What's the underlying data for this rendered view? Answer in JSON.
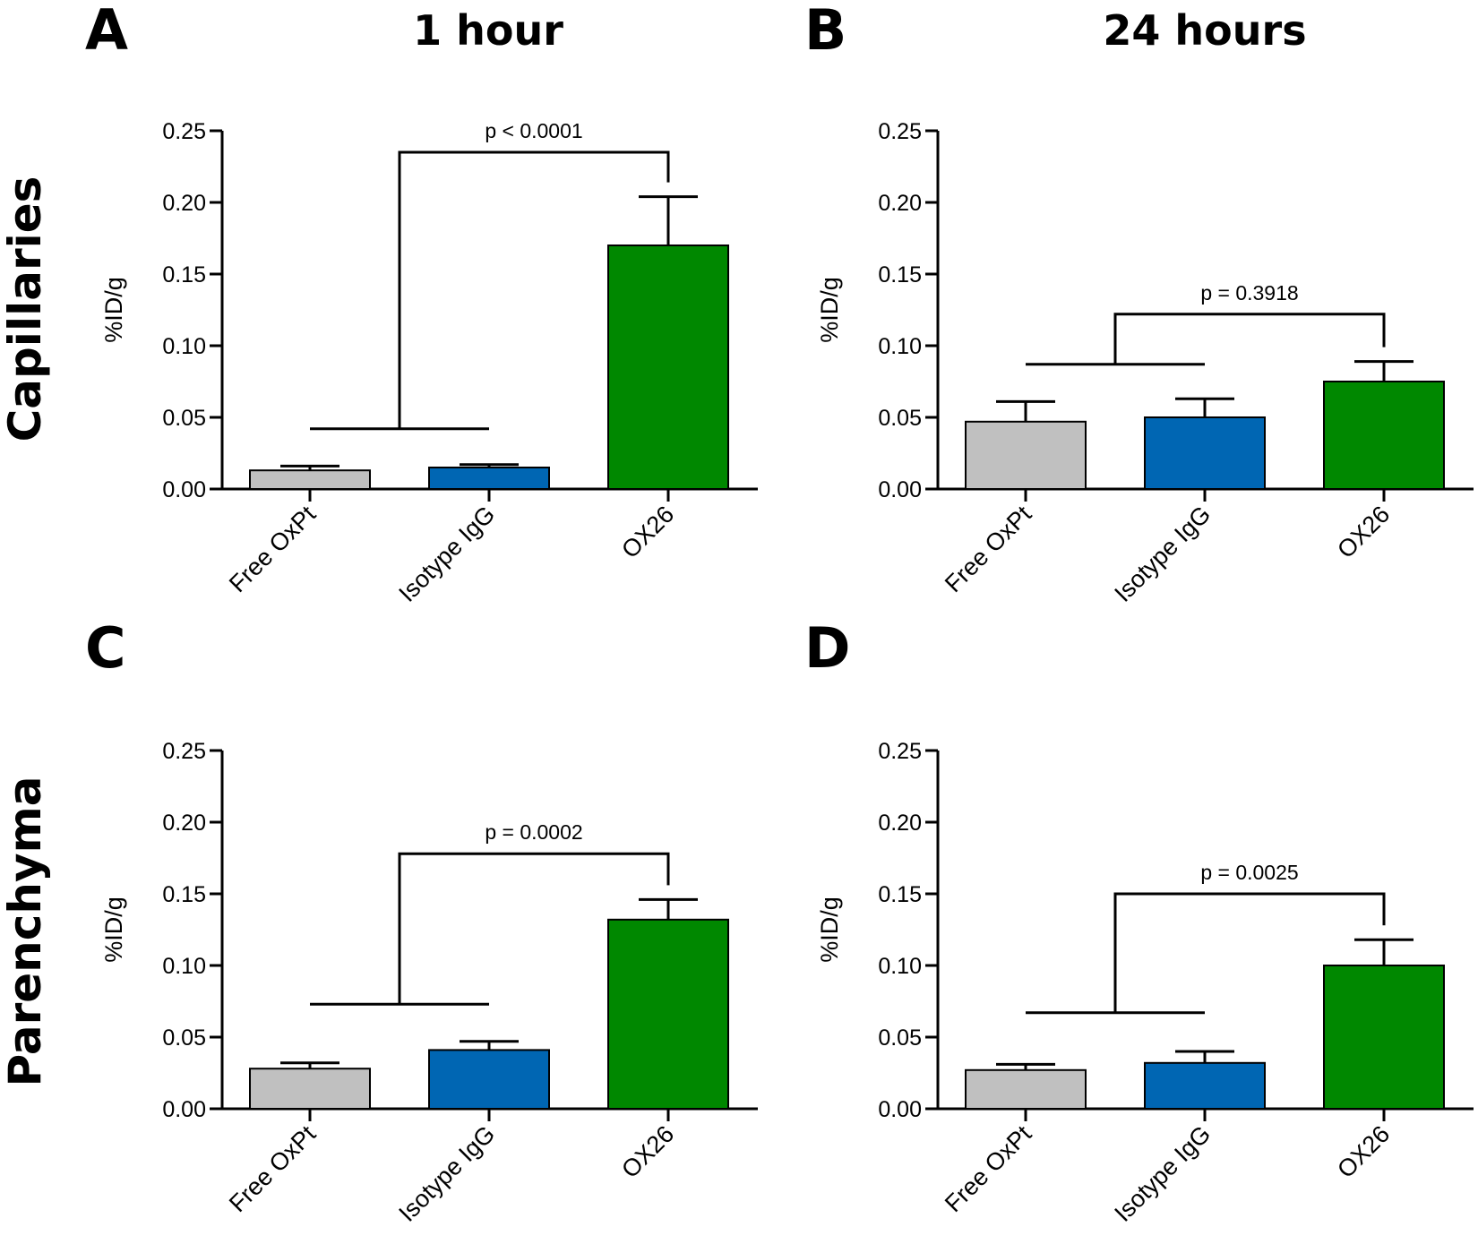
{
  "column_titles": [
    "1 hour",
    "24 hours"
  ],
  "row_titles": [
    "Capillaries",
    "Parenchyma"
  ],
  "colors": {
    "Free OxPt": "#c0c0c0",
    "Isotype IgG": "#0066b3",
    "OX26": "#008800",
    "axis": "#000000"
  },
  "chart_data": [
    {
      "panel": "A",
      "type": "bar",
      "categories": [
        "Free OxPt",
        "Isotype IgG",
        "OX26"
      ],
      "values": [
        0.013,
        0.015,
        0.17
      ],
      "errors": [
        0.003,
        0.002,
        0.034
      ],
      "ylabel": "%ID/g",
      "ylim": [
        0,
        0.25
      ],
      "yticks": [
        "0.00",
        "0.05",
        "0.10",
        "0.15",
        "0.20",
        "0.25"
      ],
      "comparison": {
        "label": "p < 0.0001",
        "group_level": 0.042,
        "top_level": 0.235,
        "target_level": 0.214
      }
    },
    {
      "panel": "B",
      "type": "bar",
      "categories": [
        "Free OxPt",
        "Isotype IgG",
        "OX26"
      ],
      "values": [
        0.047,
        0.05,
        0.075
      ],
      "errors": [
        0.014,
        0.013,
        0.014
      ],
      "ylabel": "%ID/g",
      "ylim": [
        0,
        0.25
      ],
      "yticks": [
        "0.00",
        "0.05",
        "0.10",
        "0.15",
        "0.20",
        "0.25"
      ],
      "comparison": {
        "label": "p = 0.3918",
        "group_level": 0.087,
        "top_level": 0.122,
        "target_level": 0.099
      }
    },
    {
      "panel": "C",
      "type": "bar",
      "categories": [
        "Free OxPt",
        "Isotype IgG",
        "OX26"
      ],
      "values": [
        0.028,
        0.041,
        0.132
      ],
      "errors": [
        0.004,
        0.006,
        0.014
      ],
      "ylabel": "%ID/g",
      "ylim": [
        0,
        0.25
      ],
      "yticks": [
        "0.00",
        "0.05",
        "0.10",
        "0.15",
        "0.20",
        "0.25"
      ],
      "comparison": {
        "label": "p = 0.0002",
        "group_level": 0.073,
        "top_level": 0.178,
        "target_level": 0.156
      }
    },
    {
      "panel": "D",
      "type": "bar",
      "categories": [
        "Free OxPt",
        "Isotype IgG",
        "OX26"
      ],
      "values": [
        0.027,
        0.032,
        0.1
      ],
      "errors": [
        0.004,
        0.008,
        0.018
      ],
      "ylabel": "%ID/g",
      "ylim": [
        0,
        0.25
      ],
      "yticks": [
        "0.00",
        "0.05",
        "0.10",
        "0.15",
        "0.20",
        "0.25"
      ],
      "comparison": {
        "label": "p = 0.0025",
        "group_level": 0.067,
        "top_level": 0.15,
        "target_level": 0.128
      }
    }
  ]
}
